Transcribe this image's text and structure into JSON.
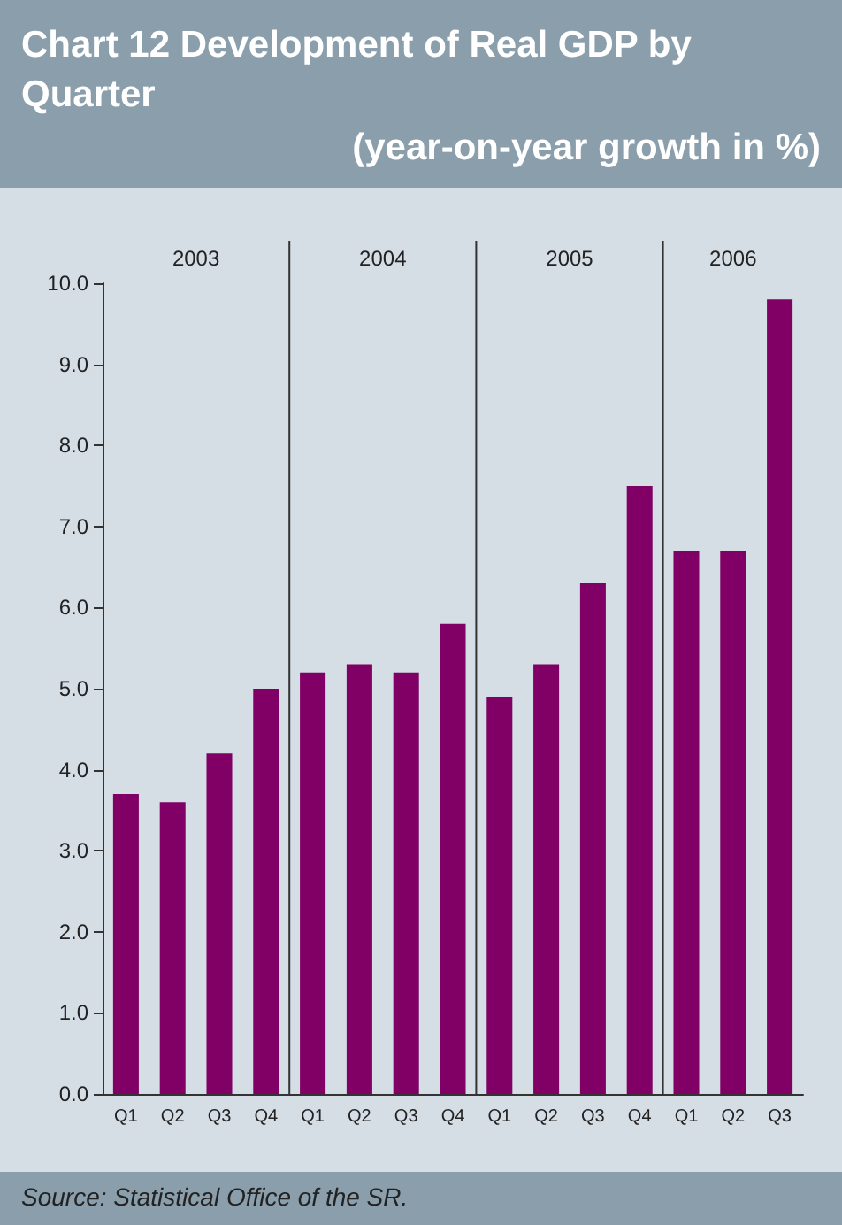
{
  "chart_data": {
    "type": "bar",
    "title": "Chart 12 Development of Real GDP by Quarter",
    "subtitle": "(year-on-year growth in %)",
    "categories": [
      "Q1",
      "Q2",
      "Q3",
      "Q4",
      "Q1",
      "Q2",
      "Q3",
      "Q4",
      "Q1",
      "Q2",
      "Q3",
      "Q4",
      "Q1",
      "Q2",
      "Q3"
    ],
    "values": [
      3.7,
      3.6,
      4.2,
      5.0,
      5.2,
      5.3,
      5.2,
      5.8,
      4.9,
      5.3,
      6.3,
      7.5,
      6.7,
      6.7,
      9.8
    ],
    "color": "#800066",
    "ylim": [
      0,
      10
    ],
    "yticks": [
      {
        "value": 0,
        "label": "0.0"
      },
      {
        "value": 1,
        "label": "1.0"
      },
      {
        "value": 2,
        "label": "2.0"
      },
      {
        "value": 3,
        "label": "3.0"
      },
      {
        "value": 4,
        "label": "4.0"
      },
      {
        "value": 5,
        "label": "5.0"
      },
      {
        "value": 6,
        "label": "6.0"
      },
      {
        "value": 7,
        "label": "7.0"
      },
      {
        "value": 8,
        "label": "8.0"
      },
      {
        "value": 9,
        "label": "9.0"
      },
      {
        "value": 10,
        "label": "10.0"
      }
    ],
    "grid": false,
    "annotations": [
      "2003",
      "2004",
      "2005",
      "2006",
      "Source: Statistical Office of the SR."
    ]
  }
}
